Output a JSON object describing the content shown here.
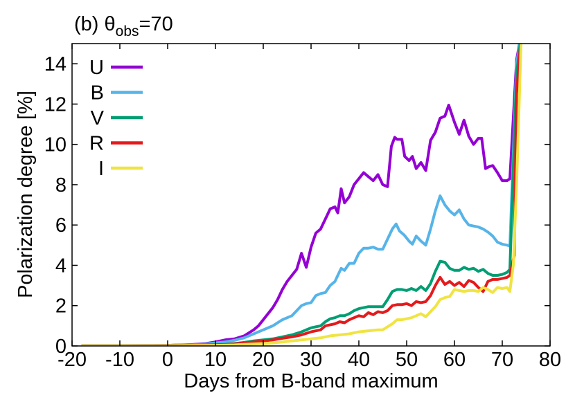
{
  "chart_data": {
    "type": "line",
    "title": "(b) θ",
    "title_subscript": "obs",
    "title_suffix": "=70",
    "xlabel": "Days from B-band maximum",
    "ylabel": "Polarization degree [%]",
    "xlim": [
      -20,
      80
    ],
    "ylim": [
      0,
      15
    ],
    "xticks": [
      "-20",
      "-10",
      "0",
      "10",
      "20",
      "30",
      "40",
      "50",
      "60",
      "70",
      "80"
    ],
    "yticks": [
      "0",
      "2",
      "4",
      "6",
      "8",
      "10",
      "12",
      "14"
    ],
    "grid": false,
    "legend_position": "top-left",
    "series": [
      {
        "name": "U",
        "color": "#9400d3",
        "points": [
          [
            -18,
            0.02
          ],
          [
            -10,
            0.02
          ],
          [
            0,
            0.03
          ],
          [
            5,
            0.07
          ],
          [
            8,
            0.12
          ],
          [
            10,
            0.2
          ],
          [
            12,
            0.3
          ],
          [
            14,
            0.35
          ],
          [
            16,
            0.5
          ],
          [
            18,
            0.8
          ],
          [
            19,
            1.0
          ],
          [
            20,
            1.3
          ],
          [
            21,
            1.6
          ],
          [
            22,
            1.9
          ],
          [
            23,
            2.3
          ],
          [
            24,
            2.8
          ],
          [
            25,
            3.2
          ],
          [
            26,
            3.5
          ],
          [
            27,
            3.8
          ],
          [
            28,
            4.6
          ],
          [
            29,
            3.9
          ],
          [
            30,
            4.9
          ],
          [
            31,
            5.6
          ],
          [
            32,
            5.8
          ],
          [
            33,
            6.3
          ],
          [
            34,
            6.8
          ],
          [
            35,
            6.9
          ],
          [
            35.6,
            6.6
          ],
          [
            36.3,
            7.8
          ],
          [
            37,
            7.1
          ],
          [
            38,
            7.4
          ],
          [
            39,
            8.0
          ],
          [
            40,
            8.3
          ],
          [
            41,
            8.6
          ],
          [
            42,
            8.4
          ],
          [
            43,
            8.2
          ],
          [
            44,
            8.5
          ],
          [
            45,
            8.0
          ],
          [
            46,
            7.9
          ],
          [
            46.8,
            9.9
          ],
          [
            47.5,
            10.35
          ],
          [
            48,
            10.25
          ],
          [
            49,
            10.25
          ],
          [
            49.6,
            9.4
          ],
          [
            50.5,
            9.2
          ],
          [
            51.2,
            9.4
          ],
          [
            52,
            8.8
          ],
          [
            53,
            9.1
          ],
          [
            54,
            8.7
          ],
          [
            55,
            10.2
          ],
          [
            56,
            10.6
          ],
          [
            57,
            11.3
          ],
          [
            58,
            11.4
          ],
          [
            58.8,
            11.95
          ],
          [
            60,
            11.1
          ],
          [
            61,
            10.5
          ],
          [
            62,
            11.2
          ],
          [
            63,
            10.4
          ],
          [
            64,
            10.0
          ],
          [
            65,
            10.3
          ],
          [
            65.7,
            10.3
          ],
          [
            66.5,
            8.8
          ],
          [
            67.3,
            8.9
          ],
          [
            68,
            8.95
          ],
          [
            69,
            8.6
          ],
          [
            70,
            8.2
          ],
          [
            71,
            8.2
          ],
          [
            71.6,
            8.3
          ],
          [
            73,
            14.2
          ],
          [
            74,
            15.5
          ]
        ]
      },
      {
        "name": "B",
        "color": "#56b4e9",
        "points": [
          [
            -18,
            0.02
          ],
          [
            -10,
            0.02
          ],
          [
            0,
            0.03
          ],
          [
            5,
            0.06
          ],
          [
            8,
            0.1
          ],
          [
            10,
            0.15
          ],
          [
            12,
            0.2
          ],
          [
            14,
            0.28
          ],
          [
            16,
            0.4
          ],
          [
            18,
            0.6
          ],
          [
            20,
            0.8
          ],
          [
            22,
            1.0
          ],
          [
            24,
            1.3
          ],
          [
            26,
            1.5
          ],
          [
            28,
            2.0
          ],
          [
            29,
            2.1
          ],
          [
            30,
            2.15
          ],
          [
            31,
            2.5
          ],
          [
            32,
            2.6
          ],
          [
            33,
            2.65
          ],
          [
            34,
            3.0
          ],
          [
            35,
            3.2
          ],
          [
            35.6,
            3.5
          ],
          [
            36.3,
            3.85
          ],
          [
            37,
            3.75
          ],
          [
            38,
            4.1
          ],
          [
            39,
            4.1
          ],
          [
            40,
            4.6
          ],
          [
            41,
            4.85
          ],
          [
            42,
            4.85
          ],
          [
            43,
            4.9
          ],
          [
            44,
            4.8
          ],
          [
            45,
            4.8
          ],
          [
            46,
            5.3
          ],
          [
            47,
            5.8
          ],
          [
            47.8,
            6.05
          ],
          [
            48.5,
            5.7
          ],
          [
            49.5,
            5.5
          ],
          [
            50.5,
            5.2
          ],
          [
            51.2,
            5.05
          ],
          [
            52,
            5.45
          ],
          [
            53,
            5.2
          ],
          [
            54,
            5.0
          ],
          [
            55,
            5.8
          ],
          [
            56,
            6.7
          ],
          [
            57,
            7.45
          ],
          [
            58,
            7.0
          ],
          [
            59,
            6.7
          ],
          [
            60,
            6.5
          ],
          [
            61,
            6.75
          ],
          [
            62,
            6.3
          ],
          [
            63,
            6.0
          ],
          [
            64,
            5.95
          ],
          [
            65,
            5.9
          ],
          [
            66,
            5.8
          ],
          [
            67,
            5.65
          ],
          [
            68,
            5.45
          ],
          [
            69,
            5.15
          ],
          [
            70,
            5.05
          ],
          [
            71,
            5.0
          ],
          [
            71.6,
            4.95
          ],
          [
            73,
            14.0
          ],
          [
            74,
            15.5
          ]
        ]
      },
      {
        "name": "V",
        "color": "#009e73",
        "points": [
          [
            -18,
            0.01
          ],
          [
            -10,
            0.01
          ],
          [
            0,
            0.02
          ],
          [
            5,
            0.04
          ],
          [
            10,
            0.06
          ],
          [
            12,
            0.08
          ],
          [
            14,
            0.12
          ],
          [
            16,
            0.18
          ],
          [
            18,
            0.25
          ],
          [
            20,
            0.3
          ],
          [
            22,
            0.35
          ],
          [
            24,
            0.45
          ],
          [
            26,
            0.55
          ],
          [
            28,
            0.7
          ],
          [
            30,
            0.9
          ],
          [
            31,
            0.95
          ],
          [
            32,
            1.0
          ],
          [
            33,
            1.2
          ],
          [
            34,
            1.35
          ],
          [
            35,
            1.4
          ],
          [
            36,
            1.5
          ],
          [
            37,
            1.5
          ],
          [
            38,
            1.6
          ],
          [
            39,
            1.75
          ],
          [
            40,
            1.85
          ],
          [
            42,
            1.95
          ],
          [
            44,
            1.95
          ],
          [
            45,
            1.95
          ],
          [
            46,
            2.3
          ],
          [
            47,
            2.7
          ],
          [
            48,
            2.8
          ],
          [
            49,
            2.8
          ],
          [
            50,
            2.75
          ],
          [
            51,
            2.85
          ],
          [
            52,
            2.75
          ],
          [
            53,
            2.95
          ],
          [
            54,
            2.75
          ],
          [
            55,
            3.1
          ],
          [
            56,
            3.7
          ],
          [
            57,
            4.2
          ],
          [
            58,
            4.15
          ],
          [
            59,
            3.85
          ],
          [
            60,
            3.75
          ],
          [
            61,
            3.75
          ],
          [
            62,
            3.9
          ],
          [
            63,
            3.8
          ],
          [
            64,
            3.85
          ],
          [
            65,
            3.7
          ],
          [
            66,
            3.8
          ],
          [
            67,
            3.6
          ],
          [
            68,
            3.5
          ],
          [
            69,
            3.5
          ],
          [
            70,
            3.55
          ],
          [
            71,
            3.65
          ],
          [
            71.6,
            3.8
          ],
          [
            73,
            13.5
          ],
          [
            74,
            15.5
          ]
        ]
      },
      {
        "name": "R",
        "color": "#e41a1c",
        "points": [
          [
            -18,
            0.01
          ],
          [
            -10,
            0.01
          ],
          [
            0,
            0.02
          ],
          [
            5,
            0.03
          ],
          [
            10,
            0.05
          ],
          [
            12,
            0.07
          ],
          [
            14,
            0.1
          ],
          [
            16,
            0.15
          ],
          [
            18,
            0.2
          ],
          [
            20,
            0.25
          ],
          [
            22,
            0.3
          ],
          [
            24,
            0.38
          ],
          [
            26,
            0.45
          ],
          [
            28,
            0.55
          ],
          [
            30,
            0.7
          ],
          [
            32,
            0.8
          ],
          [
            33,
            1.0
          ],
          [
            34,
            1.05
          ],
          [
            35,
            1.1
          ],
          [
            36,
            1.2
          ],
          [
            37,
            1.15
          ],
          [
            38,
            1.3
          ],
          [
            39,
            1.4
          ],
          [
            40,
            1.5
          ],
          [
            41,
            1.45
          ],
          [
            42,
            1.65
          ],
          [
            43,
            1.55
          ],
          [
            44,
            1.7
          ],
          [
            45,
            1.65
          ],
          [
            46,
            1.75
          ],
          [
            47,
            2.0
          ],
          [
            48,
            2.05
          ],
          [
            49,
            2.05
          ],
          [
            50,
            2.1
          ],
          [
            51,
            2.0
          ],
          [
            52,
            2.2
          ],
          [
            53,
            2.15
          ],
          [
            54,
            2.2
          ],
          [
            55,
            2.5
          ],
          [
            56,
            3.0
          ],
          [
            57,
            3.4
          ],
          [
            58,
            3.05
          ],
          [
            59,
            3.2
          ],
          [
            60,
            3.0
          ],
          [
            61,
            3.15
          ],
          [
            62,
            2.95
          ],
          [
            63,
            3.25
          ],
          [
            64,
            3.15
          ],
          [
            65,
            2.9
          ],
          [
            66,
            2.7
          ],
          [
            67,
            3.2
          ],
          [
            68,
            3.3
          ],
          [
            69,
            3.3
          ],
          [
            70,
            3.35
          ],
          [
            71,
            3.4
          ],
          [
            71.6,
            3.5
          ],
          [
            72.5,
            4.5
          ],
          [
            73,
            12.5
          ],
          [
            74,
            15.5
          ]
        ]
      },
      {
        "name": "I",
        "color": "#f0e442",
        "points": [
          [
            -18,
            0.01
          ],
          [
            -10,
            0.01
          ],
          [
            0,
            0.01
          ],
          [
            5,
            0.02
          ],
          [
            10,
            0.03
          ],
          [
            14,
            0.05
          ],
          [
            16,
            0.08
          ],
          [
            18,
            0.1
          ],
          [
            20,
            0.12
          ],
          [
            22,
            0.15
          ],
          [
            24,
            0.2
          ],
          [
            26,
            0.25
          ],
          [
            28,
            0.3
          ],
          [
            30,
            0.35
          ],
          [
            32,
            0.4
          ],
          [
            34,
            0.5
          ],
          [
            36,
            0.55
          ],
          [
            38,
            0.6
          ],
          [
            40,
            0.7
          ],
          [
            42,
            0.75
          ],
          [
            44,
            0.8
          ],
          [
            45,
            0.8
          ],
          [
            46,
            0.95
          ],
          [
            47,
            1.1
          ],
          [
            48,
            1.3
          ],
          [
            49,
            1.3
          ],
          [
            50,
            1.35
          ],
          [
            51,
            1.4
          ],
          [
            52,
            1.5
          ],
          [
            53,
            1.6
          ],
          [
            54,
            1.45
          ],
          [
            55,
            1.7
          ],
          [
            56,
            1.95
          ],
          [
            57,
            2.3
          ],
          [
            58,
            2.4
          ],
          [
            59,
            2.45
          ],
          [
            60,
            2.8
          ],
          [
            61,
            2.75
          ],
          [
            62,
            2.7
          ],
          [
            63,
            2.75
          ],
          [
            64,
            2.75
          ],
          [
            65,
            2.7
          ],
          [
            66,
            2.9
          ],
          [
            67,
            2.8
          ],
          [
            68,
            2.65
          ],
          [
            69,
            2.9
          ],
          [
            70,
            2.85
          ],
          [
            71,
            2.9
          ],
          [
            71.6,
            2.7
          ],
          [
            72.3,
            4.0
          ],
          [
            73,
            8.0
          ],
          [
            74,
            15.5
          ]
        ]
      }
    ]
  }
}
